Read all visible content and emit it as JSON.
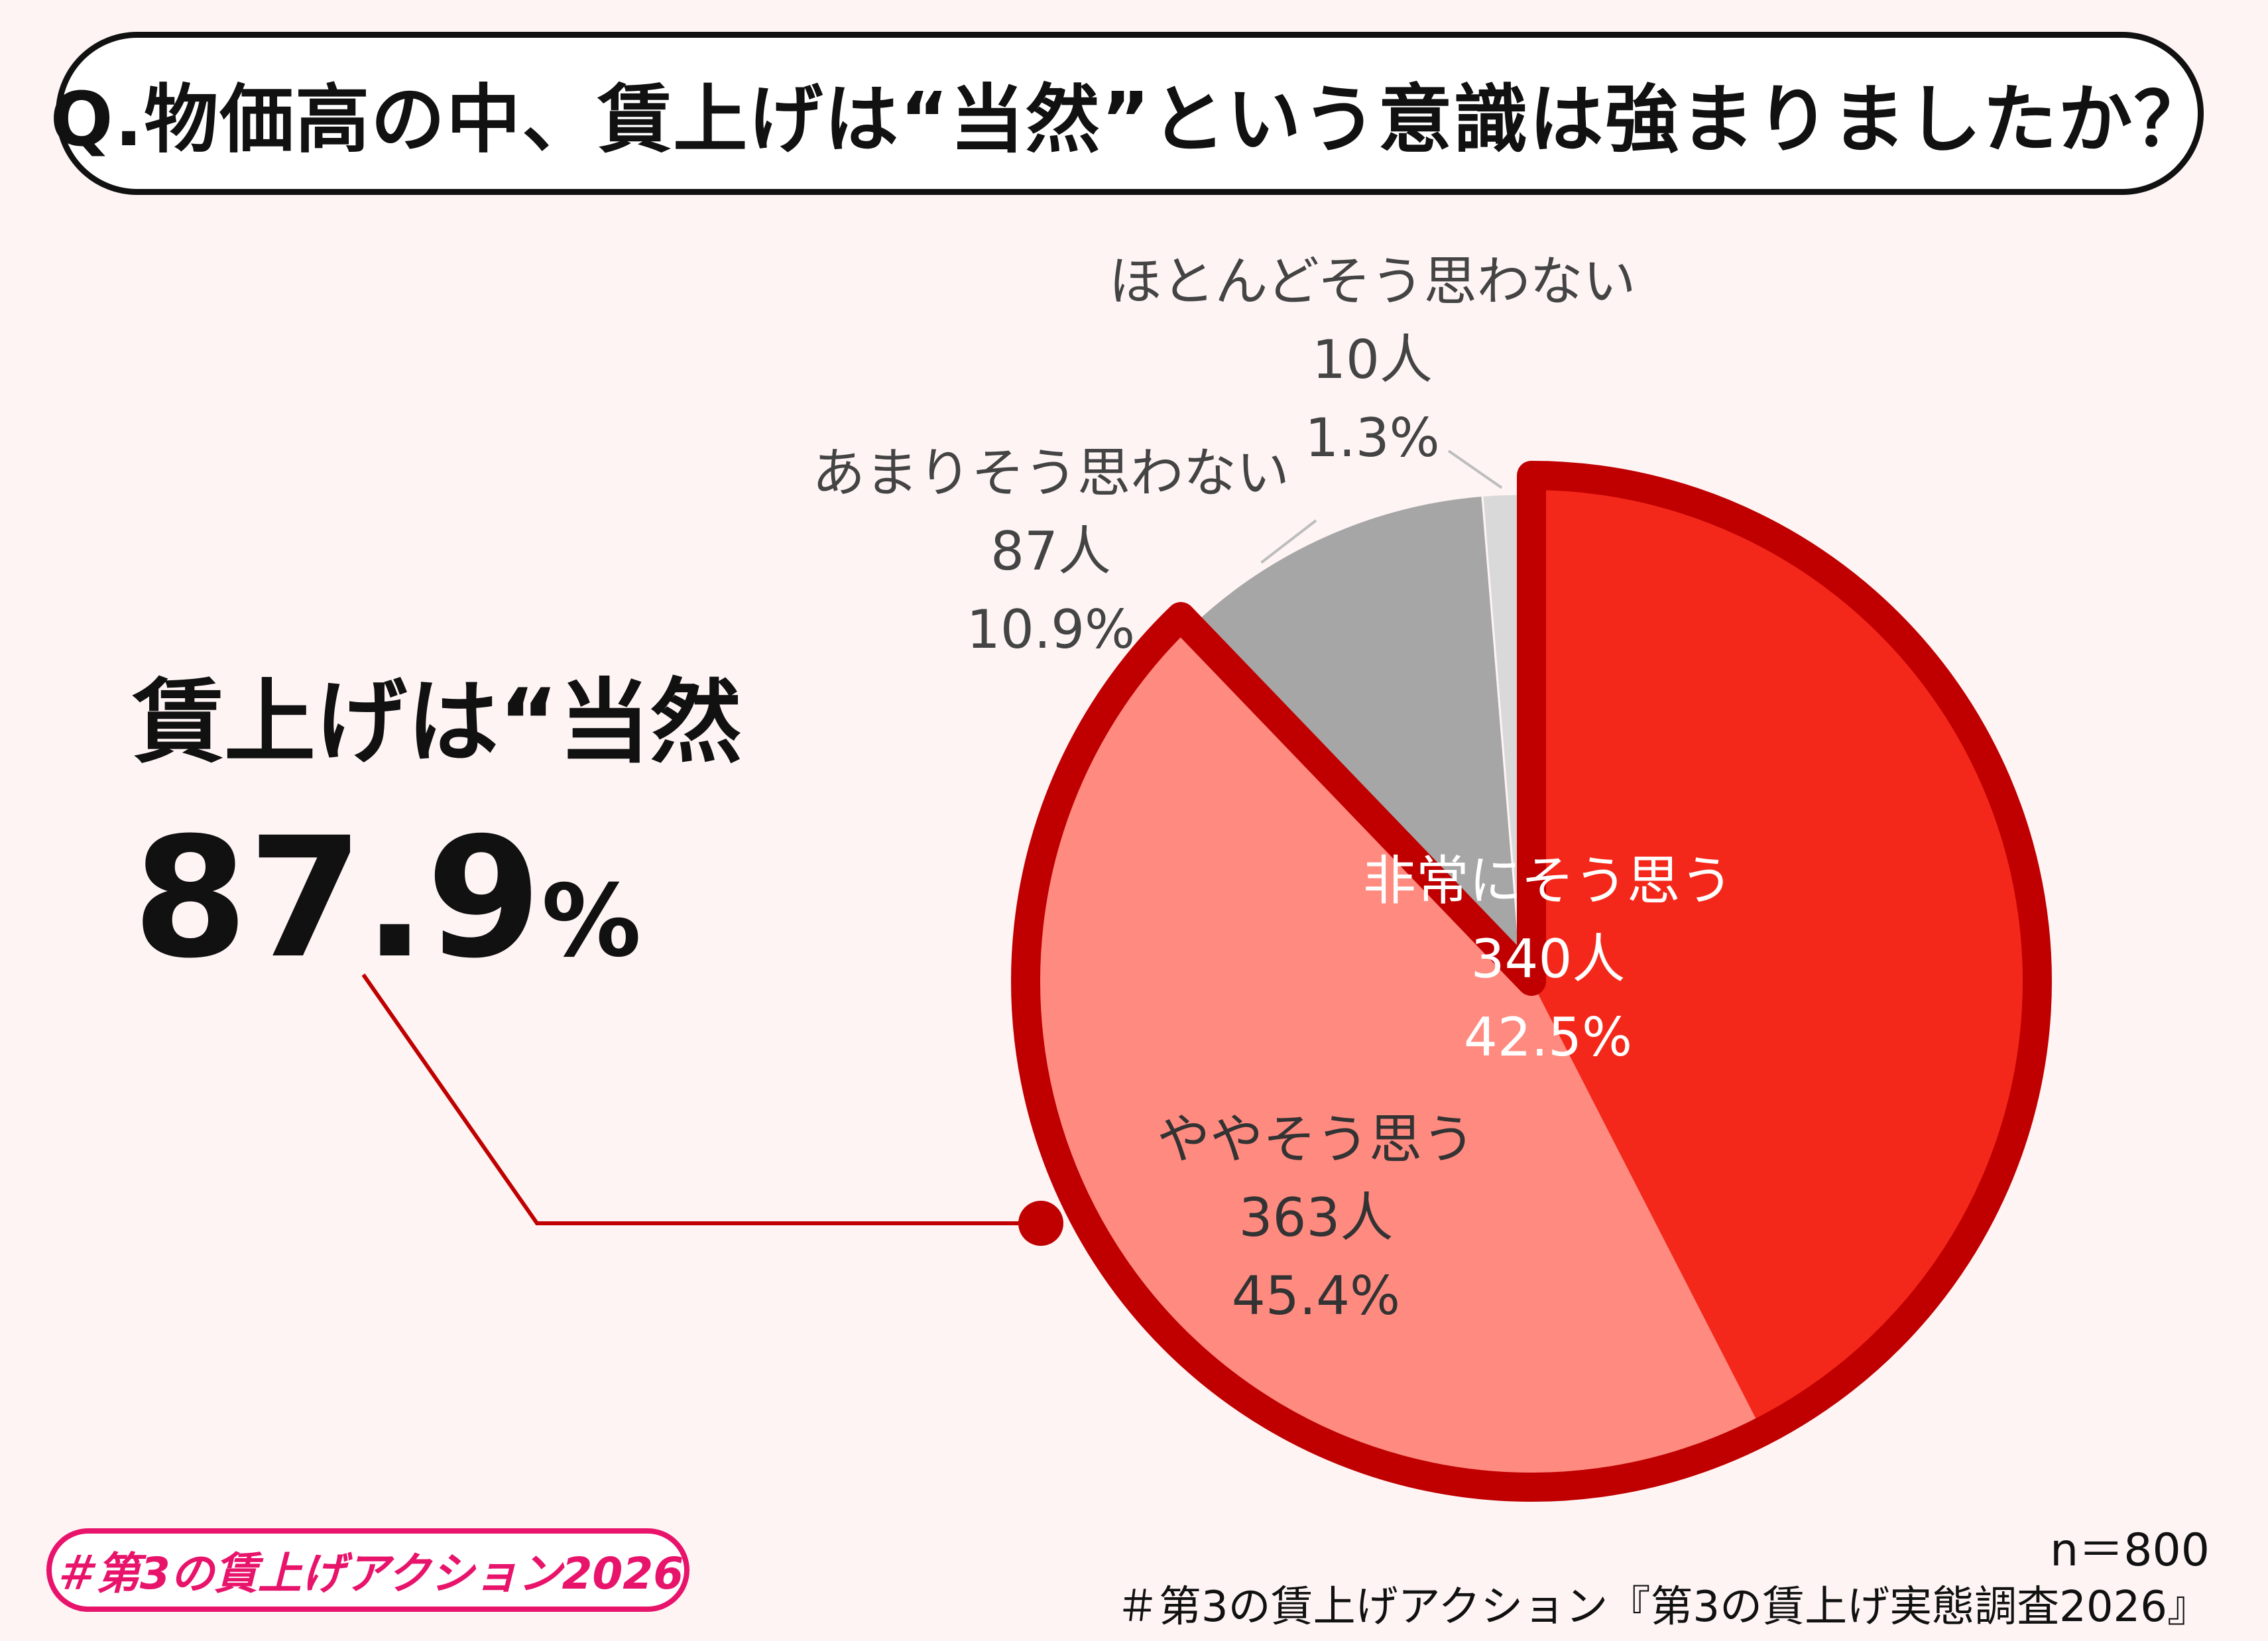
{
  "title": "Q.物価高の中、賃上げは“当然”という意識は強まりましたか？",
  "summary": {
    "heading": "賃上げは“当然",
    "value": "87.9",
    "unit": "%"
  },
  "chart_data": {
    "type": "pie",
    "title": "Q.物価高の中、賃上げは“当然”という意識は強まりましたか？",
    "start_angle_deg": 0,
    "direction": "clockwise",
    "highlighted_group": [
      "非常にそう思う",
      "ややそう思う"
    ],
    "highlighted_total_percent": 87.9,
    "slices": [
      {
        "label": "非常にそう思う",
        "count": "340人",
        "percent": "42.5%",
        "value": 42.5,
        "color": "#F4281A"
      },
      {
        "label": "ややそう思う",
        "count": "363人",
        "percent": "45.4%",
        "value": 45.4,
        "color": "#FF8A80"
      },
      {
        "label": "あまりそう思わない",
        "count": "87人",
        "percent": "10.9%",
        "value": 10.9,
        "color": "#A6A6A6"
      },
      {
        "label": "ほとんどそう思わない",
        "count": "10人",
        "percent": "1.3%",
        "value": 1.3,
        "color": "#D9D9D9"
      }
    ],
    "sample_size": "n＝800"
  },
  "colors": {
    "highlight_border": "#C00000",
    "background": "#FEF4F4",
    "tag_pink": "#E8136B"
  },
  "footer": {
    "n": "n＝800",
    "source": "＃第3の賃上げアクション『第3の賃上げ実態調査2026』",
    "tag": "＃第3の賃上げアクション2026"
  }
}
